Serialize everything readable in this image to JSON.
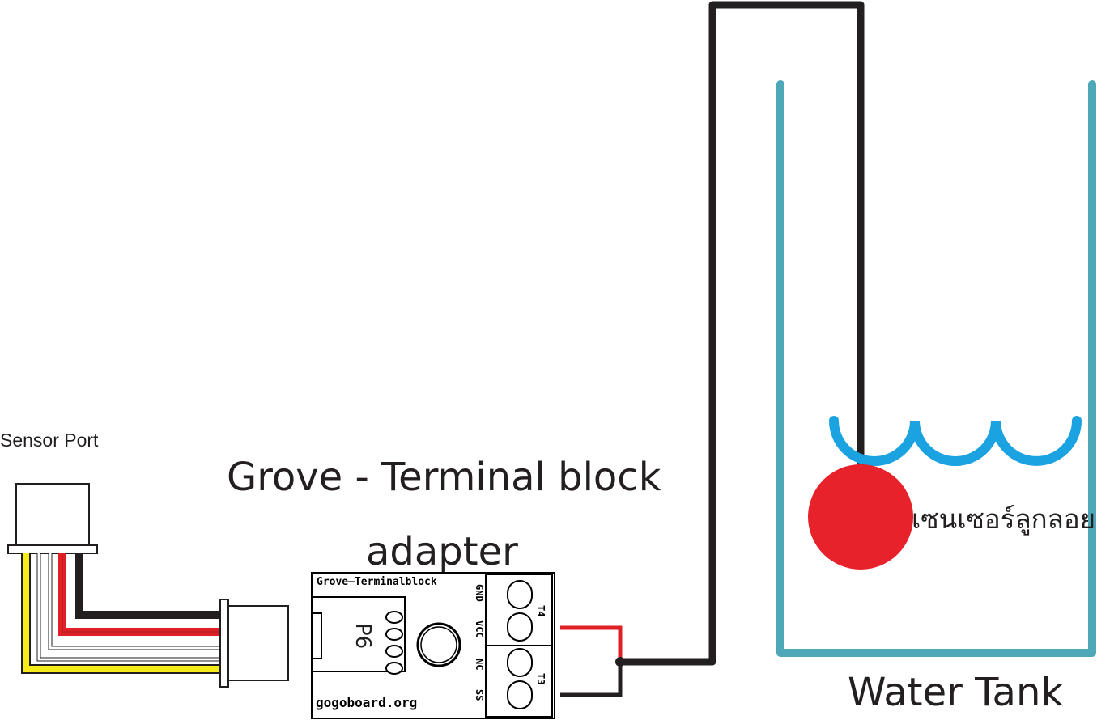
{
  "labels": {
    "sensor_port": "Sensor Port",
    "adapter_title_line1": "Grove - Terminal block",
    "adapter_title_line2": "adapter",
    "water_tank": "Water Tank",
    "float_sensor": "เซนเซอร์ลูกลอย"
  },
  "board": {
    "name": "Grove–Terminalblock",
    "connector_label": "P6",
    "url": "gogoboard.org",
    "pins": [
      "GND",
      "VCC",
      "NC",
      "SS"
    ],
    "terminals": [
      "T4",
      "T3"
    ]
  },
  "colors": {
    "wire_black": "#231f20",
    "wire_red": "#e11f26",
    "wire_white": "#ffffff",
    "wire_yellow": "#f5ec1a",
    "tank": "#4fa8b8",
    "water": "#1aa3e0",
    "float_ball": "#e8222a"
  }
}
